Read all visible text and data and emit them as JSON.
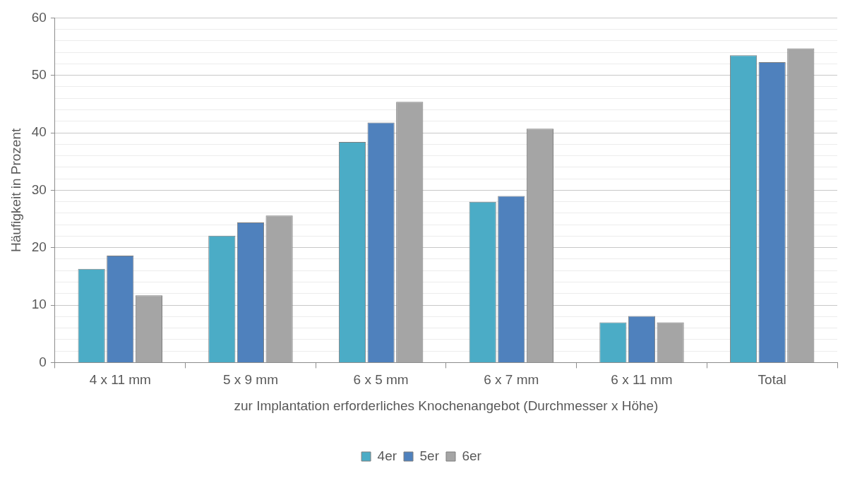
{
  "chart_data": {
    "type": "bar",
    "ylabel": "Häufigkeit in Prozent",
    "xlabel": "zur Implantation erforderliches Knochenangebot (Durchmesser x Höhe)",
    "categories": [
      "4 x 11 mm",
      "5 x 9 mm",
      "6 x 5 mm",
      "6 x 7 mm",
      "6 x 11 mm",
      "Total"
    ],
    "series": [
      {
        "name": "4er",
        "color": "#4bacc6",
        "values": [
          16.3,
          22.1,
          38.4,
          28.0,
          7.0,
          53.5
        ]
      },
      {
        "name": "5er",
        "color": "#4f81bd",
        "values": [
          18.6,
          24.4,
          41.8,
          29.0,
          8.1,
          52.3
        ]
      },
      {
        "name": "6er",
        "color": "#a5a5a5",
        "values": [
          11.7,
          25.6,
          45.4,
          40.7,
          7.0,
          54.7
        ]
      }
    ],
    "ylim": [
      0,
      60
    ],
    "yticks": [
      0,
      {
        "value": 2,
        "label": null
      },
      {
        "value": 4,
        "label": null
      },
      {
        "value": 6,
        "label": null
      },
      {
        "value": 8,
        "label": null
      },
      10,
      {
        "value": 12,
        "label": null
      },
      {
        "value": 14,
        "label": null
      },
      {
        "value": 16,
        "label": null
      },
      {
        "value": 18,
        "label": null
      },
      20,
      {
        "value": 22,
        "label": null
      },
      {
        "value": 24,
        "label": null
      },
      {
        "value": 26,
        "label": null
      },
      {
        "value": 28,
        "label": null
      },
      30,
      {
        "value": 32,
        "label": null
      },
      {
        "value": 34,
        "label": null
      },
      {
        "value": 36,
        "label": null
      },
      {
        "value": 38,
        "label": null
      },
      40,
      {
        "value": 42,
        "label": null
      },
      {
        "value": 44,
        "label": null
      },
      {
        "value": 46,
        "label": null
      },
      {
        "value": 48,
        "label": null
      },
      50,
      {
        "value": 52,
        "label": null
      },
      {
        "value": 54,
        "label": null
      },
      {
        "value": 56,
        "label": null
      },
      {
        "value": 58,
        "label": null
      },
      60
    ],
    "grid": "y",
    "legend": "bottom"
  }
}
